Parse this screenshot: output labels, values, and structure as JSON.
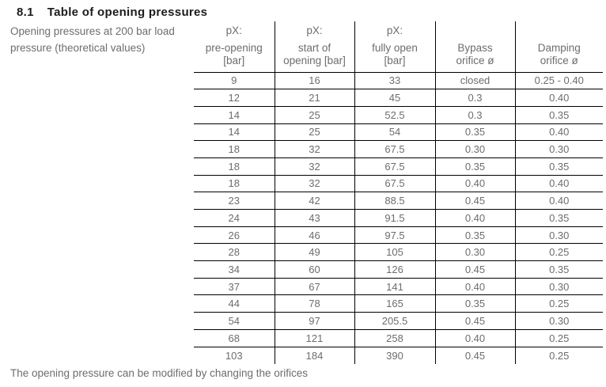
{
  "page": {
    "section_number": "8.1",
    "title": "Table of opening pressures",
    "description_line1": "Opening pressures at 200 bar load",
    "description_line2": "pressure (theoretical values)",
    "footer_note": "The opening pressure can be modified by changing the orifices"
  },
  "colors": {
    "text_gray": "#6d6d6d",
    "title_dark": "#1c1c1c",
    "table_line": "#000000",
    "background": "#ffffff"
  },
  "table": {
    "headers": [
      {
        "px": "pX:",
        "sub1": "pre-opening",
        "sub2": "[bar]"
      },
      {
        "px": "pX:",
        "sub1": "start of",
        "sub2": "opening [bar]"
      },
      {
        "px": "pX:",
        "sub1": "fully open",
        "sub2": "[bar]"
      },
      {
        "px": "",
        "sub1": "Bypass",
        "sub2": "orifice ø"
      },
      {
        "px": "",
        "sub1": "Damping",
        "sub2": "orifice ø"
      }
    ],
    "rows": [
      [
        "9",
        "16",
        "33",
        "closed",
        "0.25 - 0.40"
      ],
      [
        "12",
        "21",
        "45",
        "0.3",
        "0.40"
      ],
      [
        "14",
        "25",
        "52.5",
        "0.3",
        "0.35"
      ],
      [
        "14",
        "25",
        "54",
        "0.35",
        "0.40"
      ],
      [
        "18",
        "32",
        "67.5",
        "0.30",
        "0.30"
      ],
      [
        "18",
        "32",
        "67.5",
        "0.35",
        "0.35"
      ],
      [
        "18",
        "32",
        "67.5",
        "0.40",
        "0.40"
      ],
      [
        "23",
        "42",
        "88.5",
        "0.45",
        "0.40"
      ],
      [
        "24",
        "43",
        "91.5",
        "0.40",
        "0.35"
      ],
      [
        "26",
        "46",
        "97.5",
        "0.35",
        "0.30"
      ],
      [
        "28",
        "49",
        "105",
        "0.30",
        "0.25"
      ],
      [
        "34",
        "60",
        "126",
        "0.45",
        "0.35"
      ],
      [
        "37",
        "67",
        "141",
        "0.40",
        "0.30"
      ],
      [
        "44",
        "78",
        "165",
        "0.35",
        "0.25"
      ],
      [
        "54",
        "97",
        "205.5",
        "0.45",
        "0.30"
      ],
      [
        "68",
        "121",
        "258",
        "0.40",
        "0.25"
      ],
      [
        "103",
        "184",
        "390",
        "0.45",
        "0.25"
      ]
    ]
  }
}
